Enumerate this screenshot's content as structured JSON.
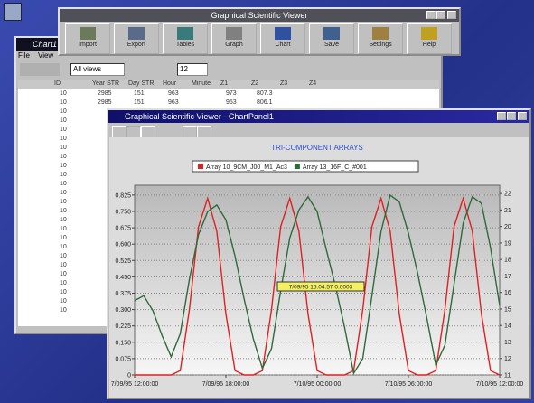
{
  "toolbar_window": {
    "title": "Graphical Scientific Viewer",
    "buttons": [
      "Import",
      "Export",
      "Tables",
      "Graph",
      "Chart",
      "Save",
      "Settings",
      "Help"
    ]
  },
  "table_window": {
    "title": "Chart1",
    "menu": [
      "File",
      "View"
    ],
    "view_select": "All views",
    "font_size": "12",
    "columns": [
      "ID",
      "Year STR",
      "Day STR",
      "Hour",
      "Minute",
      "Z1",
      "Z2",
      "Z3",
      "Z4"
    ],
    "rows": [
      [
        "10",
        "2985",
        "151",
        "963",
        "",
        "973",
        "807.3"
      ],
      [
        "10",
        "2985",
        "151",
        "963",
        "",
        "953",
        "806.1"
      ],
      [
        "10"
      ],
      [
        "10"
      ],
      [
        "10"
      ],
      [
        "10"
      ],
      [
        "10"
      ],
      [
        "10"
      ],
      [
        "10"
      ],
      [
        "10"
      ],
      [
        "10"
      ],
      [
        "10"
      ],
      [
        "10"
      ],
      [
        "10"
      ],
      [
        "10"
      ],
      [
        "10"
      ],
      [
        "10"
      ],
      [
        "10"
      ],
      [
        "10"
      ],
      [
        "10"
      ],
      [
        "10"
      ],
      [
        "10"
      ],
      [
        "10"
      ],
      [
        "10"
      ],
      [
        "10"
      ]
    ]
  },
  "chart_window": {
    "title": "Graphical Scientific Viewer - ChartPanel1",
    "chart_data": {
      "type": "line",
      "title": "TRI-COMPONENT ARRAYS",
      "categories": [
        "7/09/95 12:00:00",
        null,
        null,
        null,
        null,
        null,
        null,
        null,
        null,
        null,
        "7/09/95 18:00:00",
        null,
        null,
        null,
        null,
        null,
        null,
        null,
        null,
        null,
        "7/10/95 00:00:00",
        null,
        null,
        null,
        null,
        null,
        null,
        null,
        null,
        null,
        "7/10/95 06:00:00",
        null,
        null,
        null,
        null,
        null,
        null,
        null,
        null,
        null,
        "7/10/95 12:00:00"
      ],
      "series": [
        {
          "name": "Array 10_9CM_J00_M1_Ac3",
          "color": "#e02020",
          "values": [
            0,
            0,
            0,
            0,
            0,
            0.02,
            0.3,
            0.68,
            0.81,
            0.66,
            0.28,
            0.02,
            0,
            0,
            0.02,
            0.3,
            0.68,
            0.81,
            0.66,
            0.28,
            0.02,
            0,
            0,
            0,
            0.02,
            0.3,
            0.68,
            0.81,
            0.66,
            0.28,
            0.02,
            0,
            0,
            0.02,
            0.3,
            0.68,
            0.81,
            0.66,
            0.28,
            0.02,
            0
          ]
        },
        {
          "name": "Array 13_16F_C_#001",
          "color": "#2f6a3a",
          "axis": "y2",
          "values": [
            15.5,
            15.8,
            14.9,
            13.4,
            12.1,
            13.5,
            16.8,
            19.5,
            20.9,
            21.3,
            20.4,
            18.2,
            15.6,
            13.2,
            11.4,
            12.6,
            16.1,
            19.3,
            21.0,
            21.8,
            20.9,
            18.6,
            16.4,
            13.9,
            11.1,
            12.0,
            15.8,
            19.7,
            21.9,
            21.5,
            19.6,
            17.2,
            14.5,
            11.6,
            12.8,
            16.5,
            20.2,
            21.8,
            21.4,
            18.7,
            15.2
          ]
        }
      ],
      "ylim": [
        0,
        0.87
      ],
      "yticks": [
        0,
        0.075,
        {
          "value": 0.15,
          "label": "0.150"
        },
        0.225,
        {
          "value": 0.3,
          "label": "0.300"
        },
        0.375,
        {
          "value": 0.45,
          "label": "0.450"
        },
        0.525,
        {
          "value": 0.6,
          "label": "0.600"
        },
        0.675,
        {
          "value": 0.75,
          "label": "0.750"
        },
        0.825
      ],
      "y2lim": [
        11,
        22.5
      ],
      "y2ticks": [
        11,
        12,
        13,
        14,
        15,
        16,
        17,
        18,
        19,
        20,
        21,
        22
      ],
      "grid": true,
      "annotation": "7/09/95 15:04:57 0.0003"
    }
  }
}
